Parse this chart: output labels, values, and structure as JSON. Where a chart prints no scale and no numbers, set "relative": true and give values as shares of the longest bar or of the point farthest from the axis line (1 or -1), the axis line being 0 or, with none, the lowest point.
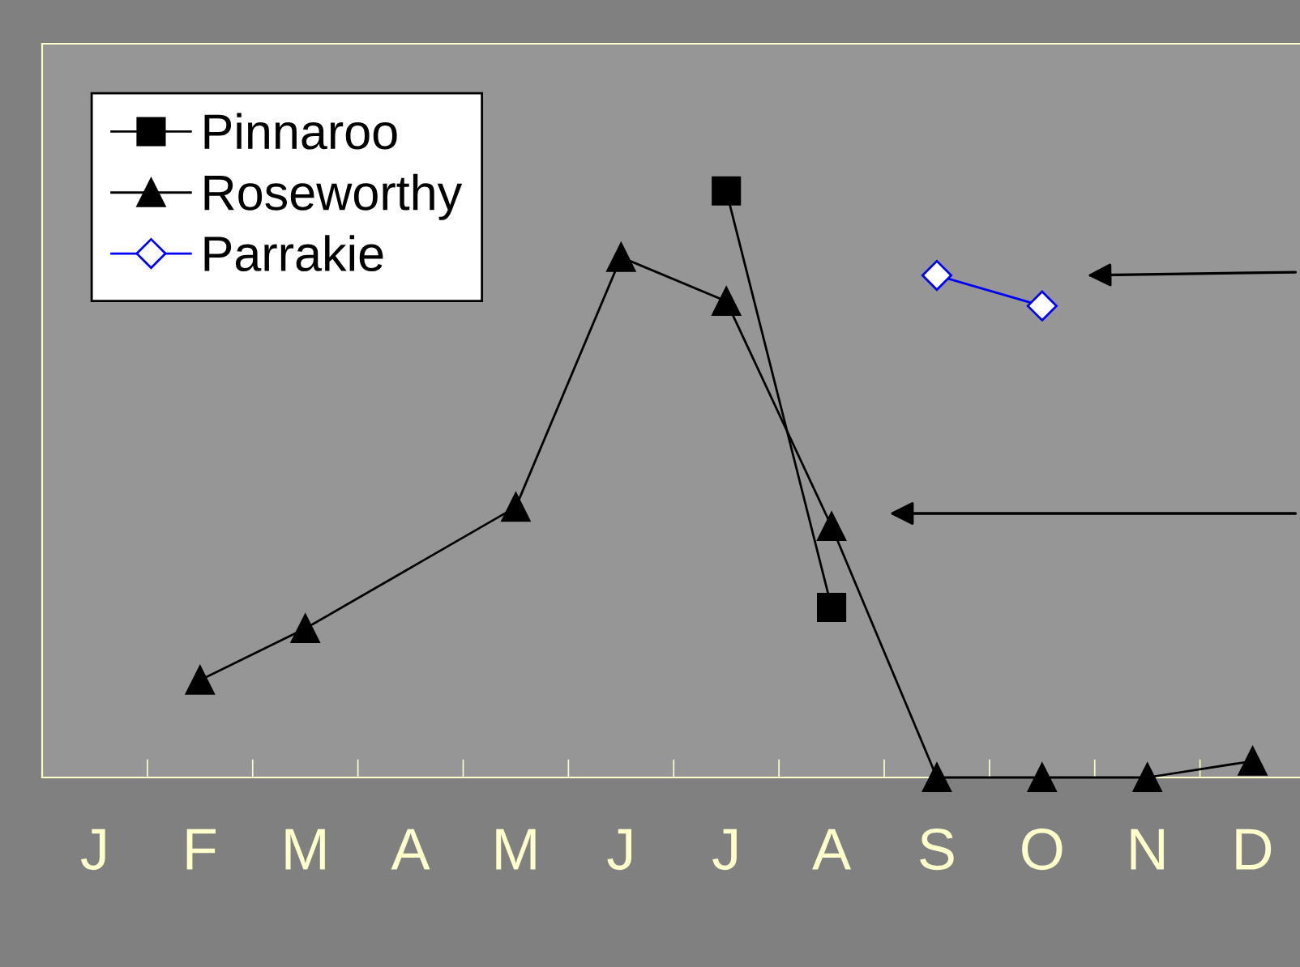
{
  "chart_data": {
    "type": "line",
    "relative": true,
    "categories": [
      "J",
      "F",
      "M",
      "A",
      "M",
      "J",
      "J",
      "A",
      "S",
      "O",
      "N",
      "D"
    ],
    "series": [
      {
        "name": "Pinnaroo",
        "color": "#000000",
        "marker": "square",
        "values": [
          null,
          null,
          null,
          null,
          null,
          null,
          1.0,
          0.29,
          null,
          null,
          null,
          null
        ]
      },
      {
        "name": "Roseworthy",
        "color": "#000000",
        "marker": "triangle",
        "values": [
          null,
          0.166,
          0.254,
          null,
          0.461,
          0.887,
          0.812,
          0.428,
          0,
          0,
          0,
          0.028
        ]
      },
      {
        "name": "Parrakie",
        "color": "#0000ff",
        "marker": "diamond",
        "values": [
          null,
          null,
          null,
          null,
          null,
          null,
          null,
          null,
          0.856,
          0.804,
          null,
          null
        ]
      }
    ],
    "legend": "top left",
    "grid": false,
    "line_style": "solid"
  }
}
